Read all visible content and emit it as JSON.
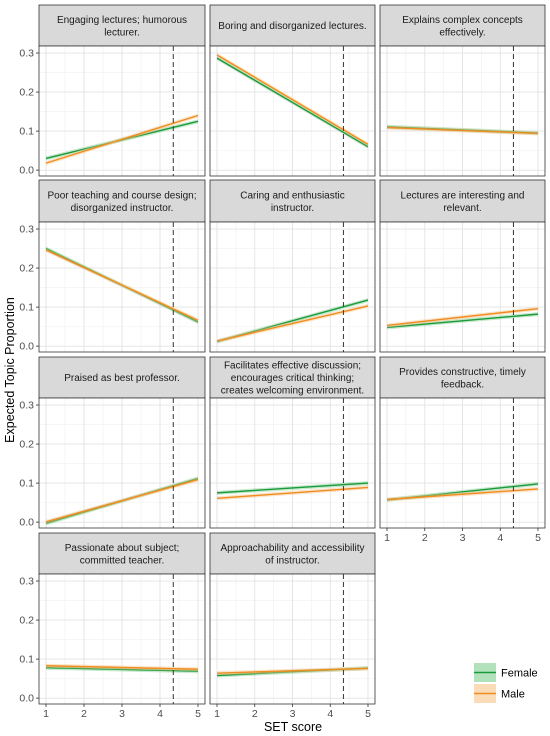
{
  "chart_data": {
    "type": "line",
    "xlabel": "SET score",
    "ylabel": "Expected Topic Proportion",
    "xlim": [
      1,
      5
    ],
    "ylim": [
      0,
      0.3
    ],
    "xticks": [
      1,
      2,
      3,
      4,
      5
    ],
    "yticks": [
      0.0,
      0.1,
      0.2,
      0.3
    ],
    "ytick_labels": [
      "0.0",
      "0.1",
      "0.2",
      "0.3"
    ],
    "vline_x": 4.35,
    "grid": true,
    "legend": {
      "position": "bottom-right",
      "entries": [
        {
          "name": "Female",
          "color": "#1a9a3a",
          "fill": "#7fcf8f"
        },
        {
          "name": "Male",
          "color": "#f08c20",
          "fill": "#f7c48a"
        }
      ]
    },
    "panels": [
      {
        "title": [
          "Engaging lectures; humorous",
          "lecturer."
        ],
        "series": [
          {
            "name": "Female",
            "x": [
              1,
              5
            ],
            "y": [
              0.03,
              0.125
            ]
          },
          {
            "name": "Male",
            "x": [
              1,
              5
            ],
            "y": [
              0.018,
              0.14
            ]
          }
        ]
      },
      {
        "title": [
          "Boring and disorganized lectures."
        ],
        "series": [
          {
            "name": "Female",
            "x": [
              1,
              5
            ],
            "y": [
              0.287,
              0.06
            ]
          },
          {
            "name": "Male",
            "x": [
              1,
              5
            ],
            "y": [
              0.295,
              0.066
            ]
          }
        ]
      },
      {
        "title": [
          "Explains complex concepts",
          "effectively."
        ],
        "series": [
          {
            "name": "Female",
            "x": [
              1,
              5
            ],
            "y": [
              0.111,
              0.095
            ]
          },
          {
            "name": "Male",
            "x": [
              1,
              5
            ],
            "y": [
              0.109,
              0.094
            ]
          }
        ]
      },
      {
        "title": [
          "Poor teaching and course design;",
          "disorganized instructor."
        ],
        "series": [
          {
            "name": "Female",
            "x": [
              1,
              5
            ],
            "y": [
              0.25,
              0.062
            ]
          },
          {
            "name": "Male",
            "x": [
              1,
              5
            ],
            "y": [
              0.246,
              0.066
            ]
          }
        ]
      },
      {
        "title": [
          "Caring and enthusiastic",
          "instructor."
        ],
        "series": [
          {
            "name": "Female",
            "x": [
              1,
              5
            ],
            "y": [
              0.012,
              0.118
            ]
          },
          {
            "name": "Male",
            "x": [
              1,
              5
            ],
            "y": [
              0.013,
              0.103
            ]
          }
        ]
      },
      {
        "title": [
          "Lectures are interesting and",
          "relevant."
        ],
        "series": [
          {
            "name": "Female",
            "x": [
              1,
              5
            ],
            "y": [
              0.048,
              0.082
            ]
          },
          {
            "name": "Male",
            "x": [
              1,
              5
            ],
            "y": [
              0.053,
              0.096
            ]
          }
        ]
      },
      {
        "title": [
          "Praised as best professor."
        ],
        "series": [
          {
            "name": "Female",
            "x": [
              1,
              5
            ],
            "y": [
              -0.003,
              0.112
            ]
          },
          {
            "name": "Male",
            "x": [
              1,
              5
            ],
            "y": [
              0.001,
              0.109
            ]
          }
        ]
      },
      {
        "title": [
          "Facilitates effective discussion;",
          "encourages critical thinking;",
          "creates welcoming environment."
        ],
        "series": [
          {
            "name": "Female",
            "x": [
              1,
              5
            ],
            "y": [
              0.075,
              0.1
            ]
          },
          {
            "name": "Male",
            "x": [
              1,
              5
            ],
            "y": [
              0.061,
              0.089
            ]
          }
        ]
      },
      {
        "title": [
          "Provides constructive, timely",
          "feedback."
        ],
        "series": [
          {
            "name": "Female",
            "x": [
              1,
              5
            ],
            "y": [
              0.057,
              0.098
            ]
          },
          {
            "name": "Male",
            "x": [
              1,
              5
            ],
            "y": [
              0.058,
              0.085
            ]
          }
        ]
      },
      {
        "title": [
          "Passionate about subject;",
          "committed teacher."
        ],
        "series": [
          {
            "name": "Female",
            "x": [
              1,
              5
            ],
            "y": [
              0.078,
              0.069
            ]
          },
          {
            "name": "Male",
            "x": [
              1,
              5
            ],
            "y": [
              0.083,
              0.074
            ]
          }
        ]
      },
      {
        "title": [
          "Approachability and accessibility",
          "of instructor."
        ],
        "series": [
          {
            "name": "Female",
            "x": [
              1,
              5
            ],
            "y": [
              0.058,
              0.077
            ]
          },
          {
            "name": "Male",
            "x": [
              1,
              5
            ],
            "y": [
              0.064,
              0.076
            ]
          }
        ]
      }
    ]
  }
}
